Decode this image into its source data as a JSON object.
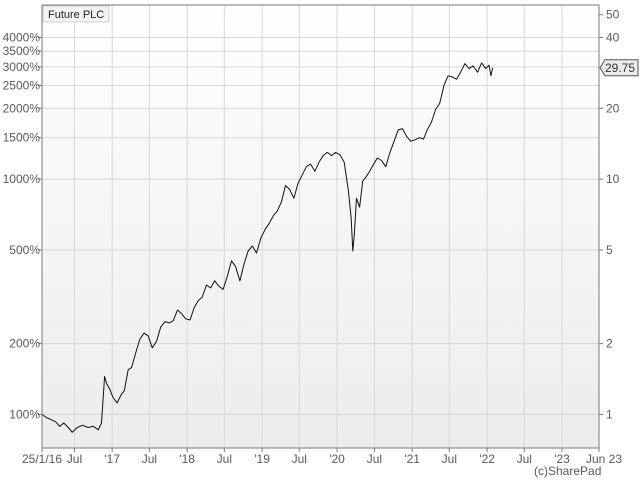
{
  "chart_data": {
    "type": "line",
    "title": "Future PLC",
    "xlabel": "",
    "ylabel": "",
    "scale": "log",
    "grid": true,
    "x_tick_labels": [
      "25/1/16",
      "Jul",
      "'17",
      "Jul",
      "'18",
      "Jul",
      "'19",
      "Jul",
      "'20",
      "Jul",
      "'21",
      "Jul",
      "'22",
      "Jul",
      "'23",
      "Jun 23"
    ],
    "y_left_ticks": [
      {
        "label": "100%",
        "value": 100
      },
      {
        "label": "200%",
        "value": 200
      },
      {
        "label": "500%",
        "value": 500
      },
      {
        "label": "1000%",
        "value": 1000
      },
      {
        "label": "1500%",
        "value": 1500
      },
      {
        "label": "2000%",
        "value": 2000
      },
      {
        "label": "2500%",
        "value": 2500
      },
      {
        "label": "3000%",
        "value": 3000
      },
      {
        "label": "3500%",
        "value": 3500
      },
      {
        "label": "4000%",
        "value": 4000
      }
    ],
    "y_right_ticks": [
      {
        "label": "1",
        "value": 1
      },
      {
        "label": "2",
        "value": 2
      },
      {
        "label": "5",
        "value": 5
      },
      {
        "label": "10",
        "value": 10
      },
      {
        "label": "20",
        "value": 20
      },
      {
        "label": "40",
        "value": 40
      },
      {
        "label": "50",
        "value": 50
      }
    ],
    "y_right_range": [
      0.72,
      55
    ],
    "last_price_label": "29.75",
    "series": [
      {
        "x": [
          "2016-01-25",
          "2016-02-15",
          "2016-03-10",
          "2016-04-01",
          "2016-04-20",
          "2016-05-10",
          "2016-06-01",
          "2016-06-20",
          "2016-07-15",
          "2016-08-10",
          "2016-09-05",
          "2016-10-01",
          "2016-10-25",
          "2016-11-10",
          "2016-11-25",
          "2016-12-05",
          "2016-12-20",
          "2017-01-05",
          "2017-01-25",
          "2017-02-15",
          "2017-03-01",
          "2017-03-20",
          "2017-04-05",
          "2017-04-25",
          "2017-05-15",
          "2017-06-05",
          "2017-06-25",
          "2017-07-15",
          "2017-08-05",
          "2017-08-25",
          "2017-09-15",
          "2017-10-05",
          "2017-10-25",
          "2017-11-15",
          "2017-12-05",
          "2017-12-25",
          "2018-01-15",
          "2018-02-05",
          "2018-02-25",
          "2018-03-15",
          "2018-04-05",
          "2018-04-25",
          "2018-05-15",
          "2018-06-05",
          "2018-06-25",
          "2018-07-15",
          "2018-08-05",
          "2018-08-25",
          "2018-09-15",
          "2018-10-05",
          "2018-10-25",
          "2018-11-15",
          "2018-12-05",
          "2018-12-25",
          "2019-01-15",
          "2019-02-05",
          "2019-02-25",
          "2019-03-15",
          "2019-04-05",
          "2019-04-25",
          "2019-05-15",
          "2019-06-05",
          "2019-06-25",
          "2019-07-15",
          "2019-08-05",
          "2019-08-25",
          "2019-09-15",
          "2019-10-05",
          "2019-10-25",
          "2019-11-15",
          "2019-12-05",
          "2019-12-25",
          "2020-01-15",
          "2020-02-05",
          "2020-02-25",
          "2020-03-10",
          "2020-03-18",
          "2020-03-25",
          "2020-04-05",
          "2020-04-20",
          "2020-05-05",
          "2020-05-20",
          "2020-06-05",
          "2020-06-25",
          "2020-07-15",
          "2020-08-05",
          "2020-08-25",
          "2020-09-15",
          "2020-10-05",
          "2020-10-25",
          "2020-11-15",
          "2020-12-05",
          "2020-12-25",
          "2021-01-15",
          "2021-02-05",
          "2021-02-25",
          "2021-03-15",
          "2021-04-05",
          "2021-04-25",
          "2021-05-15",
          "2021-06-05",
          "2021-06-25",
          "2021-07-15",
          "2021-08-05",
          "2021-08-25",
          "2021-09-15",
          "2021-10-05",
          "2021-10-25",
          "2021-11-15",
          "2021-12-05",
          "2021-12-25",
          "2022-01-10",
          "2022-01-20",
          "2022-01-28"
        ],
        "y": [
          1.0,
          0.97,
          0.95,
          0.93,
          0.89,
          0.92,
          0.88,
          0.84,
          0.88,
          0.9,
          0.88,
          0.89,
          0.86,
          0.92,
          1.45,
          1.35,
          1.28,
          1.18,
          1.12,
          1.22,
          1.26,
          1.55,
          1.58,
          1.82,
          2.08,
          2.22,
          2.16,
          1.92,
          2.05,
          2.35,
          2.48,
          2.45,
          2.5,
          2.78,
          2.68,
          2.55,
          2.52,
          2.85,
          3.05,
          3.15,
          3.55,
          3.45,
          3.7,
          3.5,
          3.4,
          3.85,
          4.5,
          4.25,
          3.7,
          4.35,
          4.95,
          5.2,
          4.85,
          5.6,
          6.1,
          6.5,
          7.0,
          7.3,
          8.0,
          9.4,
          9.05,
          8.3,
          9.6,
          10.4,
          11.3,
          11.6,
          10.8,
          11.8,
          12.6,
          13.0,
          12.6,
          13.0,
          12.7,
          11.8,
          9.0,
          6.8,
          4.95,
          5.8,
          8.3,
          7.6,
          9.8,
          10.2,
          10.7,
          11.5,
          12.3,
          12.0,
          11.3,
          13.0,
          14.5,
          16.2,
          16.4,
          15.2,
          14.5,
          14.7,
          15.0,
          14.8,
          16.2,
          17.5,
          19.8,
          21.0,
          25.1,
          27.5,
          27.2,
          26.6,
          28.5,
          31.0,
          29.5,
          30.3,
          28.5,
          31.2,
          29.5,
          30.5,
          27.5,
          29.75
        ]
      }
    ]
  },
  "labels": {
    "title": "Future PLC",
    "copyright": "(c)SharePad"
  },
  "colors": {
    "line": "#111111",
    "grid": "#d7d7d7",
    "axis": "#7a7a7a",
    "text": "#5a5a5a",
    "plot_bg_top": "#ffffff",
    "plot_bg_bottom": "#ececec",
    "badge_bg": "#ebebeb",
    "badge_border": "#555555"
  }
}
